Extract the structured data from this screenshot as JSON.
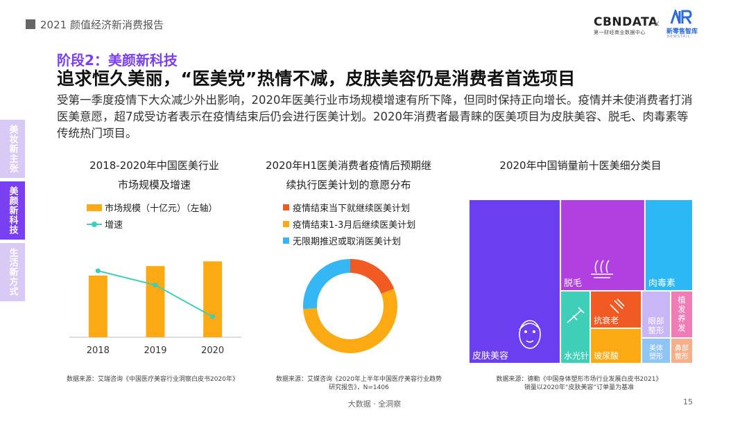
{
  "header": {
    "report_title": "2021 颜值经济新消费报告"
  },
  "logos": {
    "cbn_name": "CBNDATA",
    "cbn_sub": "第一财经商业数据中心",
    "separator": "×",
    "nr_name": "新零售智库",
    "nr_sub": "NEWSTAIL"
  },
  "stage_label": "阶段2：美颜新科技",
  "headline": "追求恒久美丽，“医美党”热情不减，皮肤美容仍是消费者首选项目",
  "paragraph": "受第一季度疫情下大众减少外出影响，2020年医美行业市场规模增速有所下降，但同时保持正向增长。疫情并未使消费者打消医美意愿，超7成受访者表示在疫情结束后仍会进行医美计划。2020年消费者最青睐的医美项目为皮肤美容、脱毛、肉毒素等传统热门项目。",
  "side_tabs": [
    "美妆新主张",
    "美颜新科技",
    "生活新方式"
  ],
  "chart1": {
    "title_line1": "2018-2020年中国医美行业",
    "title_line2": "市场规模及增速",
    "legend_bar": "市场规模（十亿元）（左轴）",
    "legend_line": "增速",
    "source": "数据来源：艾瑞咨询《中国医疗美容行业洞察白皮书2020年》"
  },
  "chart2": {
    "title_line1": "2020年H1医美消费者疫情后预期继",
    "title_line2": "续执行医美计划的意愿分布",
    "legend": [
      "疫情结束当下就继续医美计划",
      "疫情结束1-3月后继续医美计划",
      "无限期推迟或取消医美计划"
    ],
    "source_line1": "数据来源：艾媒咨询《2020年上半年中国医疗美容行业趋势",
    "source_line2": "研究报告》，N=1406"
  },
  "chart3": {
    "title": "2020年中国销量前十医美细分类目",
    "source_line1": "数据来源：德勤《中国身体塑形市场行业发展白皮书2021》",
    "source_line2": "销量以2020年“皮肤美容”订单量为基准"
  },
  "chart_data": [
    {
      "type": "bar",
      "title": "2018-2020年中国医美行业市场规模及增速",
      "categories": [
        "2018",
        "2019",
        "2020"
      ],
      "series": [
        {
          "name": "市场规模（十亿元）（左轴）",
          "type": "bar",
          "values": [
            130,
            150,
            160
          ],
          "color": "#fbaa13"
        },
        {
          "name": "增速",
          "type": "line",
          "values": [
            0.42,
            0.33,
            0.13
          ],
          "color": "#3fcfb8"
        }
      ],
      "ylim": [
        0,
        200
      ],
      "y2lim": [
        0,
        0.6
      ],
      "grid": false,
      "legend_position": "top-left"
    },
    {
      "type": "pie",
      "title": "2020年H1医美消费者疫情后预期继续执行医美计划的意愿分布",
      "donut": true,
      "labels": [
        "疫情结束当下就继续医美计划",
        "疫情结束1-3月后继续医美计划",
        "无限期推迟或取消医美计划"
      ],
      "values": [
        0.19,
        0.55,
        0.26
      ],
      "colors": [
        "#f15a22",
        "#fbaa13",
        "#35b6f5"
      ],
      "legend_position": "top"
    },
    {
      "type": "treemap",
      "title": "2020年中国销量前十医美细分类目",
      "labels": [
        "皮肤美容",
        "脱毛",
        "肉毒素",
        "水光针",
        "抗衰老",
        "玻尿酸",
        "眼部整形",
        "植发养发",
        "美体塑形",
        "鼻部整形"
      ],
      "values": [
        100,
        63,
        30,
        17,
        12,
        10,
        6,
        5,
        3,
        3
      ],
      "colors": [
        "#6b3ff0",
        "#b23fe0",
        "#2bb8f5",
        "#3fcfb8",
        "#f15a22",
        "#fbaa13",
        "#c9b6f7",
        "#f07cb6",
        "#8ec5f5",
        "#f5b08b"
      ]
    }
  ],
  "footer": {
    "center": "大数据 · 全洞察",
    "page": "15"
  }
}
